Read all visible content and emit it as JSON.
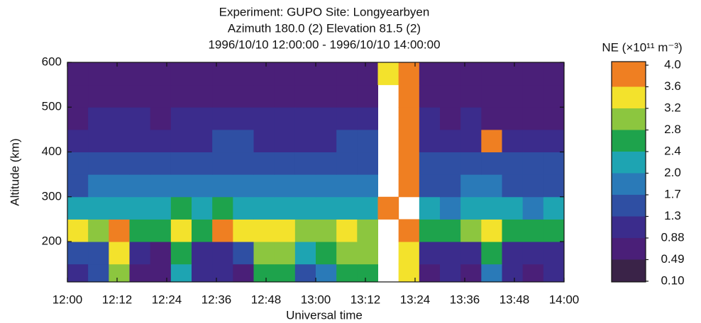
{
  "chart_data": {
    "type": "heatmap",
    "title": "Experiment: GUPO Site: Longyearbyen",
    "subtitle": "Azimuth 180.0 (2) Elevation 81.5 (2)",
    "time_range": "1996/10/10 12:00:00 - 1996/10/10 14:00:00",
    "x_label": "Universal time",
    "y_label": "Altitude (km)",
    "x": [
      "12:00",
      "12:05",
      "12:10",
      "12:15",
      "12:20",
      "12:25",
      "12:30",
      "12:35",
      "12:40",
      "12:45",
      "12:50",
      "12:55",
      "13:00",
      "13:05",
      "13:10",
      "13:15",
      "13:20",
      "13:25",
      "13:30",
      "13:35",
      "13:40",
      "13:45",
      "13:50",
      "13:55"
    ],
    "xlim": [
      "12:00",
      "14:00"
    ],
    "xticks": [
      "12:00",
      "12:12",
      "12:24",
      "12:36",
      "12:48",
      "13:00",
      "13:12",
      "13:24",
      "13:36",
      "13:48",
      "14:00"
    ],
    "y": [
      125,
      175,
      225,
      275,
      325,
      375,
      425,
      475,
      525,
      575
    ],
    "ylim": [
      110,
      600
    ],
    "yticks": [
      200,
      300,
      400,
      500,
      600
    ],
    "z": [
      [
        0.9,
        1.4,
        3.0,
        0.7,
        0.6,
        2.2,
        1.0,
        1.0,
        0.8,
        2.4,
        2.6,
        1.6,
        1.8,
        2.4,
        2.6,
        null,
        3.2,
        0.8,
        0.9,
        0.8,
        1.8,
        0.9,
        0.8,
        0.9
      ],
      [
        1.4,
        1.6,
        3.4,
        0.9,
        0.8,
        2.6,
        1.1,
        1.2,
        1.3,
        2.8,
        3.0,
        2.2,
        2.4,
        3.0,
        2.8,
        null,
        3.4,
        1.0,
        1.1,
        1.2,
        2.4,
        1.2,
        1.0,
        1.2
      ],
      [
        3.3,
        2.8,
        3.6,
        2.5,
        2.4,
        3.4,
        2.6,
        3.8,
        3.2,
        3.2,
        3.4,
        3.0,
        2.8,
        3.2,
        3.0,
        null,
        3.8,
        2.6,
        2.6,
        2.8,
        3.4,
        2.6,
        2.4,
        2.6
      ],
      [
        2.0,
        2.1,
        2.2,
        2.0,
        2.0,
        2.4,
        2.2,
        2.4,
        2.3,
        2.2,
        2.2,
        2.1,
        2.1,
        2.2,
        2.3,
        3.8,
        null,
        2.0,
        1.9,
        2.0,
        2.2,
        2.0,
        1.9,
        2.0
      ],
      [
        1.6,
        1.7,
        1.8,
        1.7,
        1.7,
        1.8,
        1.8,
        1.9,
        1.9,
        1.8,
        1.8,
        1.8,
        1.8,
        1.9,
        1.9,
        null,
        3.8,
        1.6,
        1.6,
        1.7,
        1.7,
        1.6,
        1.6,
        1.6
      ],
      [
        1.3,
        1.3,
        1.4,
        1.3,
        1.3,
        1.4,
        1.4,
        1.5,
        1.5,
        1.4,
        1.4,
        1.4,
        1.4,
        1.5,
        1.5,
        null,
        3.7,
        1.3,
        1.3,
        1.3,
        1.3,
        1.3,
        1.3,
        1.3
      ],
      [
        1.1,
        1.1,
        1.2,
        1.1,
        1.1,
        1.2,
        1.2,
        1.3,
        1.3,
        1.2,
        1.2,
        1.2,
        1.2,
        1.3,
        1.3,
        null,
        3.7,
        1.1,
        1.1,
        1.1,
        3.8,
        1.1,
        1.1,
        1.1
      ],
      [
        0.8,
        0.9,
        1.0,
        0.9,
        0.8,
        0.9,
        0.9,
        1.1,
        1.0,
        0.9,
        0.9,
        0.9,
        0.9,
        1.0,
        1.1,
        null,
        3.9,
        0.9,
        0.8,
        0.9,
        0.8,
        0.8,
        0.8,
        0.8
      ],
      [
        0.6,
        0.7,
        0.8,
        0.7,
        0.6,
        0.7,
        0.7,
        0.8,
        0.8,
        0.7,
        0.7,
        0.7,
        0.7,
        0.8,
        0.8,
        null,
        3.9,
        0.7,
        0.6,
        0.6,
        0.6,
        0.6,
        0.6,
        0.6
      ],
      [
        0.5,
        0.6,
        0.6,
        0.6,
        0.5,
        0.6,
        0.6,
        0.7,
        0.6,
        0.6,
        0.6,
        0.6,
        0.6,
        0.6,
        0.7,
        3.5,
        3.9,
        0.6,
        0.5,
        0.5,
        0.5,
        0.5,
        0.5,
        0.5
      ]
    ],
    "colorbar": {
      "title": "NE (×10¹¹ m⁻³)",
      "ticks": [
        {
          "value": 0.1,
          "label": "0.10"
        },
        0.49,
        0.88,
        1.3,
        1.7,
        {
          "value": 2,
          "label": "2.0"
        },
        2.4,
        2.8,
        3.2,
        3.6,
        {
          "value": 4,
          "label": "4.0"
        }
      ],
      "colors": [
        "#3a2348",
        "#4a1f78",
        "#3b2c8c",
        "#2f4fa3",
        "#2a7ab8",
        "#1ea4b2",
        "#1ea34c",
        "#8cc63f",
        "#f3e22c",
        "#ef7f22"
      ]
    }
  }
}
